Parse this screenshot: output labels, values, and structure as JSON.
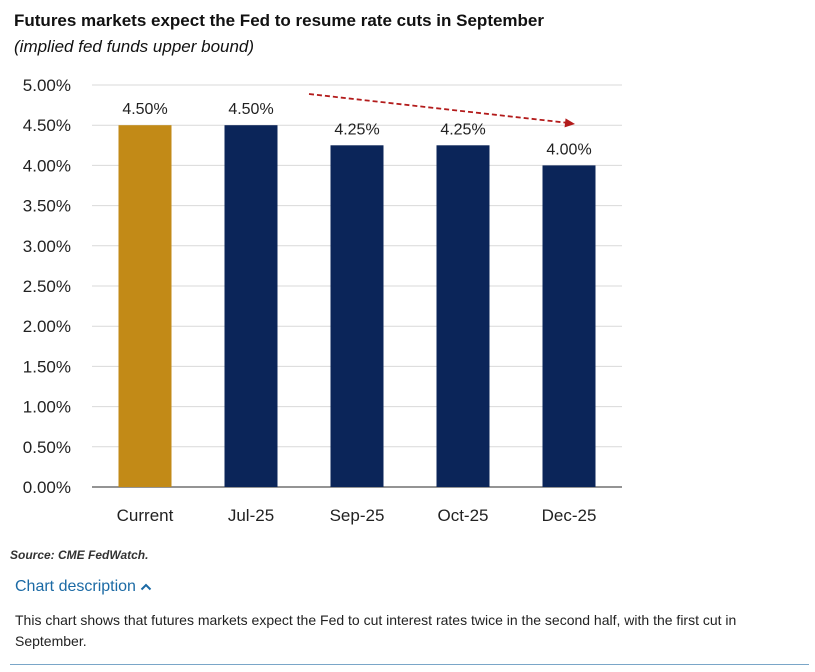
{
  "header": {
    "title": "Futures markets expect the Fed to resume rate cuts in September",
    "subtitle": "(implied fed funds upper bound)"
  },
  "chart_data": {
    "type": "bar",
    "categories": [
      "Current",
      "Jul-25",
      "Sep-25",
      "Oct-25",
      "Dec-25"
    ],
    "values": [
      4.5,
      4.5,
      4.25,
      4.25,
      4.0
    ],
    "data_labels": [
      "4.50%",
      "4.50%",
      "4.25%",
      "4.25%",
      "4.00%"
    ],
    "bar_colors": [
      "#c28a17",
      "#0b2559",
      "#0b2559",
      "#0b2559",
      "#0b2559"
    ],
    "ylim": [
      0,
      5
    ],
    "yticks": [
      0,
      0.5,
      1,
      1.5,
      2,
      2.5,
      3,
      3.5,
      4,
      4.5,
      5
    ],
    "ytick_labels": [
      "0.00%",
      "0.50%",
      "1.00%",
      "1.50%",
      "2.00%",
      "2.50%",
      "3.00%",
      "3.50%",
      "4.00%",
      "4.50%",
      "5.00%"
    ],
    "grid": true,
    "annotation": {
      "type": "trend-arrow",
      "from_category": "Jul-25",
      "to_category": "Dec-25",
      "color": "#b31b1b",
      "style": "dashed"
    }
  },
  "footer": {
    "source": "Source: CME FedWatch.",
    "description_toggle": "Chart description",
    "toggle_icon": "chevron-up-icon",
    "description": "This chart shows that futures markets expect the Fed to cut interest rates twice in the second half, with the first cut in September."
  }
}
